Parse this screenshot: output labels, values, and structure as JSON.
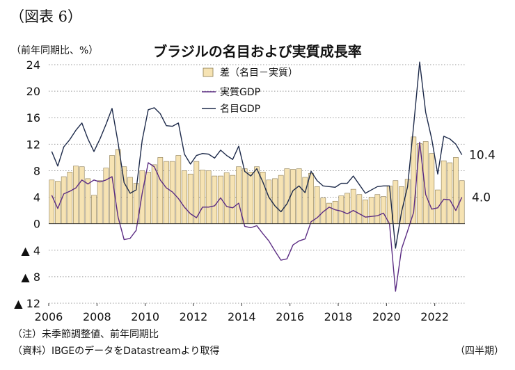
{
  "figure_label": "（図表 6）",
  "title": "ブラジルの名目および実質成長率",
  "unit_label": "（前年同期比、%）",
  "notes": {
    "note1": "（注）未季節調整値、前年同期比",
    "note2": "（資料）IBGEのデータをDatastreamより取得"
  },
  "period_label": "（四半期）",
  "colors": {
    "bar_fill": "#f6e3b3",
    "bar_stroke": "#8a7a50",
    "real_line": "#5b2c83",
    "nominal_line": "#1d2a4a",
    "grid": "#9a9a9a"
  },
  "chart_data": {
    "type": "bar+line",
    "title": "ブラジルの名目および実質成長率",
    "ylabel": "（前年同期比、%）",
    "xlabel": "（四半期）",
    "ylim": [
      -12,
      24
    ],
    "yticks": [
      24,
      20,
      16,
      12,
      8,
      4,
      0,
      -4,
      -8,
      -12
    ],
    "ytick_labels": [
      "24",
      "20",
      "16",
      "12",
      "8",
      "4",
      "0",
      "▲ 4",
      "▲ 8",
      "▲ 12"
    ],
    "xticks": [
      "2006",
      "2008",
      "2010",
      "2012",
      "2014",
      "2016",
      "2018",
      "2020",
      "2022"
    ],
    "start": "2006Q1",
    "legend": [
      "差（名目－実質）",
      "実質GDP",
      "名目GDP"
    ],
    "legend_position": "top-center",
    "grid": "horizontal dotted",
    "end_labels": {
      "nominal": "10.4",
      "real": "4.0"
    },
    "series": [
      {
        "name": "差（名目－実質）",
        "kind": "bar",
        "values": [
          6.6,
          6.4,
          7.1,
          7.8,
          8.7,
          8.6,
          6.8,
          4.3,
          6.5,
          8.4,
          10.3,
          11.2,
          8.6,
          7.0,
          6.1,
          8.0,
          7.8,
          8.9,
          10.0,
          9.4,
          9.4,
          10.3,
          8.0,
          7.5,
          9.4,
          8.1,
          8.0,
          7.2,
          7.2,
          7.7,
          7.3,
          8.6,
          8.3,
          7.8,
          8.6,
          7.8,
          6.6,
          6.8,
          7.3,
          8.3,
          8.2,
          8.3,
          7.0,
          7.6,
          5.6,
          3.9,
          3.1,
          3.4,
          4.2,
          4.6,
          5.2,
          4.4,
          3.6,
          4.0,
          4.4,
          4.1,
          5.7,
          6.5,
          5.6,
          6.7,
          13.1,
          12.1,
          12.4,
          10.6,
          5.1,
          9.5,
          9.2,
          10.0,
          6.5
        ]
      },
      {
        "name": "実質GDP",
        "kind": "line",
        "values": [
          4.3,
          2.3,
          4.5,
          4.9,
          5.4,
          6.6,
          6.0,
          6.6,
          6.3,
          6.6,
          7.1,
          1.0,
          -2.4,
          -2.2,
          -1.0,
          4.6,
          9.2,
          8.6,
          6.6,
          5.4,
          4.8,
          3.8,
          2.5,
          1.5,
          0.9,
          2.5,
          2.5,
          2.7,
          3.9,
          2.6,
          2.4,
          3.1,
          -0.4,
          -0.6,
          -0.3,
          -1.5,
          -2.6,
          -4.1,
          -5.5,
          -5.3,
          -3.2,
          -2.6,
          -2.3,
          0.3,
          0.9,
          1.8,
          2.5,
          2.1,
          1.9,
          1.5,
          2.0,
          1.5,
          1.0,
          1.1,
          1.2,
          1.6,
          0.0,
          -10.2,
          -3.8,
          -1.1,
          1.7,
          12.3,
          4.4,
          2.2,
          2.4,
          3.7,
          3.6,
          2.0,
          4.0
        ]
      },
      {
        "name": "名目GDP",
        "kind": "line",
        "values": [
          10.9,
          8.7,
          11.6,
          12.7,
          14.1,
          15.2,
          12.8,
          10.9,
          12.8,
          15.0,
          17.4,
          12.2,
          6.2,
          4.6,
          5.1,
          12.6,
          17.2,
          17.5,
          16.6,
          14.8,
          14.7,
          15.2,
          10.5,
          9.0,
          10.3,
          10.6,
          10.5,
          9.9,
          11.1,
          10.3,
          9.7,
          11.7,
          7.9,
          7.2,
          8.3,
          6.3,
          4.0,
          2.7,
          1.8,
          3.0,
          5.0,
          5.7,
          4.7,
          7.9,
          6.5,
          5.7,
          5.6,
          5.5,
          6.1,
          6.1,
          7.2,
          5.9,
          4.6,
          5.1,
          5.6,
          5.7,
          5.7,
          -3.7,
          1.8,
          5.6,
          14.8,
          24.4,
          16.8,
          12.8,
          7.5,
          13.2,
          12.8,
          12.0,
          10.4
        ]
      }
    ]
  }
}
